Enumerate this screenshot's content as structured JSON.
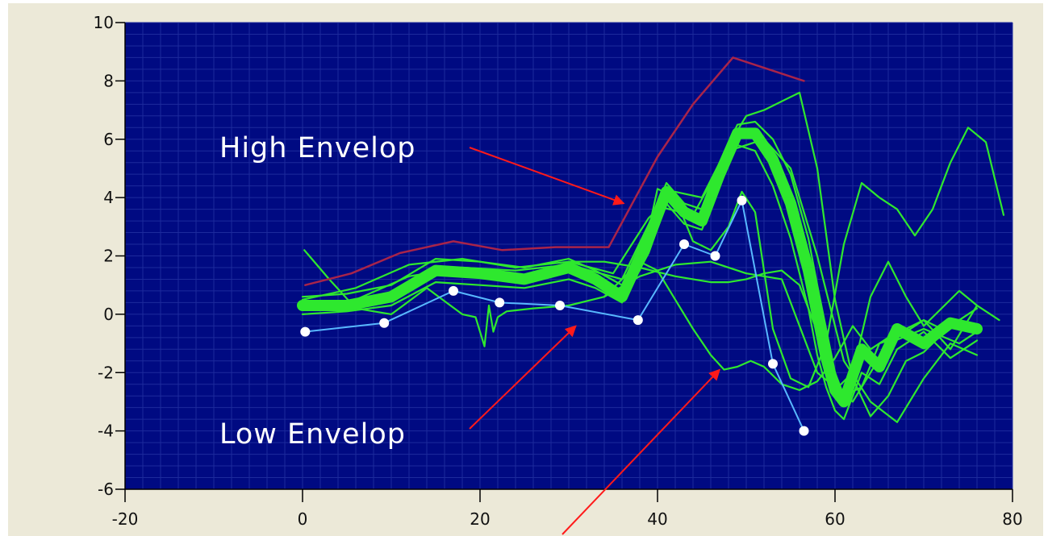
{
  "colors": {
    "plot_background": "#000a82",
    "window_background": "#ece9d8",
    "grid": "#1d2a9c",
    "high_envelope": "#a8244a",
    "low_envelope": "#58b8ff",
    "low_envelope_marker": "#ffffff",
    "curves": "#2ee82e",
    "annotation_arrow": "#ff1a1a",
    "annotation_text": "#ffffff"
  },
  "chart_data": {
    "type": "line",
    "title": "",
    "xlabel": "",
    "ylabel": "",
    "xlim": [
      -20,
      80
    ],
    "ylim": [
      -6,
      10
    ],
    "x_ticks": [
      "-20",
      "0",
      "20",
      "40",
      "60",
      "80"
    ],
    "y_ticks": [
      "-6",
      "-4",
      "-2",
      "0",
      "2",
      "4",
      "6",
      "8",
      "10"
    ],
    "grid": true,
    "legend": "none",
    "annotations": [
      {
        "text": "High Envelop",
        "target": [
          36.2,
          3.8
        ]
      },
      {
        "text": "Low Envelop",
        "target": [
          30.8,
          -0.4
        ]
      },
      {
        "text": "",
        "target": [
          47.0,
          -1.9
        ]
      }
    ],
    "series": [
      {
        "role": "high-envelope",
        "x": [
          0.3,
          5.5,
          11.0,
          17.0,
          22.5,
          28.5,
          34.5,
          40.0,
          44.0,
          48.5,
          52.5,
          56.5
        ],
        "y": [
          1.0,
          1.4,
          2.1,
          2.5,
          2.2,
          2.3,
          2.3,
          5.4,
          7.2,
          8.8,
          8.4,
          8.0
        ]
      },
      {
        "role": "low-envelope",
        "markers": true,
        "x": [
          0.3,
          9.2,
          17.0,
          22.2,
          29.0,
          37.8,
          43.0,
          46.5,
          49.5,
          53.0,
          56.5
        ],
        "y": [
          -0.6,
          -0.3,
          0.8,
          0.4,
          0.3,
          -0.2,
          2.4,
          2.0,
          3.9,
          -1.7,
          -4.0
        ]
      },
      {
        "role": "measured-curve-main",
        "thick": true,
        "x": [
          0,
          5,
          10,
          15,
          20,
          25,
          30,
          33,
          36,
          39,
          41,
          43,
          45,
          47,
          49,
          51,
          53,
          55,
          57,
          58,
          59,
          60,
          61,
          63,
          65,
          67,
          70,
          73,
          76
        ],
        "y": [
          0.3,
          0.3,
          0.6,
          1.5,
          1.4,
          1.2,
          1.6,
          1.2,
          0.6,
          2.6,
          4.2,
          3.5,
          3.2,
          4.8,
          6.2,
          6.2,
          5.3,
          3.8,
          1.5,
          0.0,
          -1.5,
          -2.6,
          -3.0,
          -1.2,
          -1.8,
          -0.5,
          -1.0,
          -0.3,
          -0.5
        ]
      },
      {
        "role": "measured-curve",
        "x": [
          0,
          5,
          10,
          15,
          20,
          25,
          30,
          33,
          36,
          39,
          41,
          43,
          45,
          47,
          49,
          51,
          53,
          55,
          57,
          58,
          59,
          60,
          61,
          63,
          65,
          67,
          70,
          73,
          76
        ],
        "y": [
          0.6,
          0.7,
          1.0,
          1.9,
          1.8,
          1.6,
          1.9,
          1.5,
          1.0,
          3.0,
          4.5,
          3.8,
          3.6,
          5.2,
          6.5,
          6.6,
          6.0,
          4.8,
          2.6,
          1.0,
          -0.5,
          -2.0,
          -2.8,
          -2.5,
          -1.0,
          -0.8,
          -0.2,
          -1.2,
          0.3
        ]
      },
      {
        "role": "measured-curve",
        "x": [
          0,
          5,
          10,
          15,
          20,
          25,
          30,
          33,
          36,
          39,
          41,
          43,
          45,
          47,
          49,
          51,
          53,
          55,
          57,
          58,
          59,
          60,
          61,
          63,
          65,
          67,
          70,
          73,
          76
        ],
        "y": [
          0.0,
          0.1,
          0.3,
          1.1,
          1.0,
          0.9,
          1.2,
          0.9,
          0.4,
          2.1,
          3.8,
          3.1,
          2.9,
          4.4,
          5.8,
          5.6,
          4.4,
          2.6,
          0.2,
          -1.4,
          -2.5,
          -3.3,
          -3.6,
          -2.0,
          -2.4,
          -1.2,
          -0.6,
          -1.5,
          -0.9
        ]
      },
      {
        "role": "measured-curve",
        "x": [
          0,
          6,
          12,
          18,
          24,
          30,
          35,
          39,
          42,
          45,
          48,
          50,
          52,
          54,
          56,
          58,
          60,
          62,
          64,
          66,
          68,
          70,
          73,
          76
        ],
        "y": [
          0.5,
          0.9,
          1.7,
          1.9,
          1.6,
          1.8,
          1.4,
          3.3,
          4.2,
          4.0,
          5.8,
          6.8,
          7.0,
          7.3,
          7.6,
          5.0,
          0.5,
          -2.2,
          -3.5,
          -2.8,
          -1.6,
          -1.3,
          -0.4,
          0.2
        ]
      },
      {
        "role": "measured-curve",
        "x": [
          0,
          6,
          12,
          18,
          24,
          30,
          36,
          40,
          44,
          48,
          52,
          55,
          58,
          61,
          64,
          67,
          70,
          73,
          76
        ],
        "y": [
          0.2,
          0.5,
          1.3,
          1.6,
          1.5,
          1.7,
          1.2,
          3.7,
          3.4,
          5.6,
          6.0,
          5.0,
          2.0,
          -1.6,
          -3.0,
          -3.7,
          -2.2,
          -1.0,
          -1.4
        ]
      },
      {
        "role": "measured-curve",
        "x": [
          0.2,
          3,
          6,
          10,
          14,
          18,
          19.5,
          20.5,
          21,
          21.5,
          22,
          23,
          26,
          30,
          34,
          38,
          42,
          46,
          50,
          54,
          58,
          62,
          66,
          70,
          74,
          76
        ],
        "y": [
          2.2,
          1.2,
          0.2,
          0.0,
          0.9,
          0.0,
          -0.1,
          -1.1,
          0.3,
          -0.6,
          -0.1,
          0.1,
          0.2,
          0.3,
          0.6,
          1.3,
          1.7,
          1.8,
          1.4,
          1.2,
          -2.0,
          -3.0,
          -1.0,
          -0.5,
          -1.0,
          -0.6
        ]
      },
      {
        "role": "measured-curve",
        "x": [
          30,
          34,
          38,
          42,
          46,
          48,
          50,
          52,
          54,
          56,
          58,
          60,
          62,
          64,
          66,
          68,
          70,
          72,
          74,
          76,
          78.5
        ],
        "y": [
          1.8,
          1.8,
          1.6,
          1.3,
          1.1,
          1.1,
          1.2,
          1.4,
          1.5,
          1.0,
          -0.6,
          -2.6,
          -2.0,
          0.6,
          1.8,
          0.6,
          -0.4,
          0.2,
          0.8,
          0.3,
          -0.2
        ]
      },
      {
        "role": "measured-curve",
        "x": [
          34,
          38,
          40,
          42,
          44,
          46,
          47.5,
          49,
          50.5,
          52,
          54,
          56,
          58,
          60,
          62,
          64,
          66,
          68,
          70,
          72,
          76
        ],
        "y": [
          0.6,
          1.8,
          1.5,
          0.5,
          -0.5,
          -1.4,
          -1.9,
          -1.8,
          -1.6,
          -1.8,
          -2.4,
          -2.6,
          -2.3,
          -1.5,
          -0.4,
          -1.2,
          -0.8,
          -0.5,
          -0.2,
          -0.5,
          -0.4
        ]
      },
      {
        "role": "measured-curve",
        "x": [
          38,
          40,
          42,
          44,
          46,
          48,
          49.5,
          51,
          53,
          55,
          57,
          59,
          61,
          63,
          65,
          67,
          69,
          71,
          73,
          75,
          77,
          79
        ],
        "y": [
          1.5,
          4.3,
          4.0,
          2.5,
          2.2,
          3.0,
          4.2,
          3.5,
          -0.5,
          -2.2,
          -2.5,
          -1.0,
          2.4,
          4.5,
          4.0,
          3.6,
          2.7,
          3.6,
          5.2,
          6.4,
          5.9,
          3.4
        ]
      }
    ]
  }
}
